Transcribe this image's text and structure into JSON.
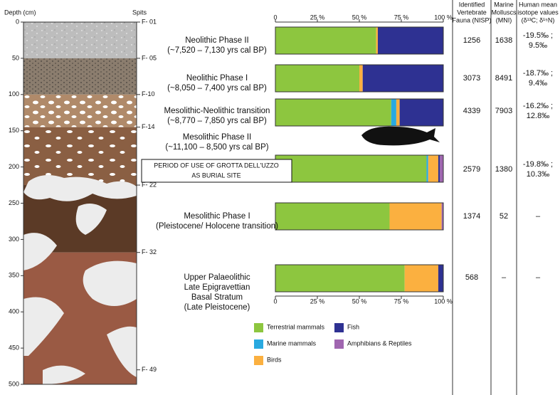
{
  "chart_data": {
    "type": "stacked-bar-h",
    "categories": [
      "Neolithic Phase II",
      "Neolithic Phase I",
      "Mesolithic-Neolithic transition",
      "Mesolithic Phase II",
      "Mesolithic Phase I",
      "Upper Palaeolithic"
    ],
    "category_notes": [
      [
        "(~7,520 – 7,130 yrs cal BP)"
      ],
      [
        "(~8,050 – 7,400 yrs cal BP)"
      ],
      [
        "(~8,770 – 7,850 yrs cal BP)"
      ],
      [
        "(~11,100 – 8,500 yrs cal BP)"
      ],
      [
        "(Pleistocene/ Holocene transition)"
      ],
      [
        "Late Epigravettian",
        "Basal Stratum",
        "(Late Pleistocene)"
      ]
    ],
    "annotation": [
      "PERIOD OF USE OF GROTTA DELL'UZZO",
      "AS BURIAL SITE"
    ],
    "series": [
      {
        "name": "Terrestrial mammals",
        "color": "#8dc63f",
        "values": [
          60,
          50,
          69,
          90,
          68,
          77
        ]
      },
      {
        "name": "Marine mammals",
        "color": "#29a9e0",
        "values": [
          0,
          0,
          3,
          1,
          0,
          0
        ]
      },
      {
        "name": "Birds",
        "color": "#fbb040",
        "values": [
          1,
          2,
          2,
          6,
          31,
          20
        ]
      },
      {
        "name": "Fish",
        "color": "#2e3192",
        "values": [
          39,
          48,
          26,
          1,
          0,
          3
        ]
      },
      {
        "name": "Amphibians & Reptiles",
        "color": "#a066b0",
        "values": [
          0,
          0,
          0,
          2,
          1,
          0
        ]
      }
    ],
    "xlim": [
      0,
      100
    ],
    "xticks": [
      0,
      {
        "value": 25,
        "label": "25 %"
      },
      {
        "value": 50,
        "label": "50 %"
      },
      {
        "value": 75,
        "label": "75 %"
      },
      {
        "value": 100,
        "label": "100 %"
      }
    ]
  },
  "depth_column": {
    "axis_label": "Depth (cm)",
    "ylim": [
      0,
      500
    ],
    "yticks": [
      0,
      50,
      100,
      150,
      200,
      250,
      300,
      350,
      400,
      450,
      500
    ],
    "spits_label": "Spits",
    "spits": [
      {
        "label": "F- 01",
        "depth": 0
      },
      {
        "label": "F- 05",
        "depth": 50
      },
      {
        "label": "F-10",
        "depth": 100
      },
      {
        "label": "F-14",
        "depth": 145
      },
      {
        "label": "F- 22",
        "depth": 225
      },
      {
        "label": "F- 32",
        "depth": 318
      },
      {
        "label": "F- 49",
        "depth": 480
      }
    ],
    "layer_boundaries": [
      50,
      100,
      145,
      225,
      318
    ]
  },
  "table": {
    "headers": [
      [
        "Identified",
        "Vertebrate",
        "Fauna (NISP)"
      ],
      [
        "Marine",
        "Molluscs",
        "(MNI)"
      ],
      [
        "Human mean",
        "isotope values",
        "(δ¹³C; δ¹⁵N)"
      ]
    ],
    "rows": [
      [
        1256,
        1638,
        [
          "-19.5‰ ;",
          "9.5‰"
        ]
      ],
      [
        3073,
        8491,
        [
          "-18.7‰ ;",
          "9.4‰"
        ]
      ],
      [
        4339,
        7903,
        [
          "-16.2‰ ;",
          "12.8‰"
        ]
      ],
      [
        2579,
        1380,
        [
          "-19.8‰ ;",
          "10.3‰"
        ]
      ],
      [
        1374,
        52,
        [
          "–"
        ]
      ],
      [
        568,
        "–",
        [
          "–"
        ]
      ]
    ]
  }
}
